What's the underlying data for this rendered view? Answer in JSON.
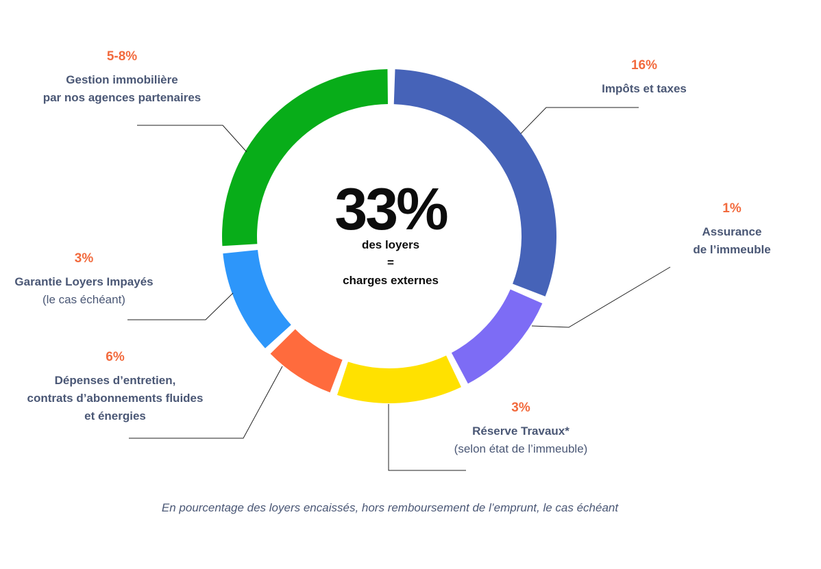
{
  "chart_data": {
    "type": "pie",
    "title": "33%",
    "center_lines": [
      "des loyers",
      "=",
      "charges externes"
    ],
    "slices": [
      {
        "key": "impots",
        "percent": "16%",
        "label": "Impôts et taxes",
        "sublabel": "",
        "color": "#4663b8",
        "weight": 16
      },
      {
        "key": "assurance",
        "percent": "1%",
        "label": "Assurance de l’immeuble",
        "sublabel": "",
        "color": "#7d6cf5",
        "weight": 5.6
      },
      {
        "key": "reserve",
        "percent": "3%",
        "label": "Réserve Travaux*",
        "sublabel": "(selon état de l’immeuble)",
        "color": "#ffe100",
        "weight": 6.4
      },
      {
        "key": "depenses",
        "percent": "6%",
        "label": "Dépenses d’entretien, contrats d’abonnements fluides et énergies",
        "sublabel": "",
        "color": "#ff6b3d",
        "weight": 3.6
      },
      {
        "key": "garantie",
        "percent": "3%",
        "label": "Garantie Loyers Impayés",
        "sublabel": "(le cas échéant)",
        "color": "#2d96fa",
        "weight": 5.3
      },
      {
        "key": "gestion",
        "percent": "5-8%",
        "label": "Gestion immobilière par nos agences partenaires",
        "sublabel": "",
        "color": "#08ad19",
        "weight": 13.6
      }
    ]
  },
  "labels": {
    "gestion": {
      "percent": "5-8%",
      "line1": "Gestion immobilière",
      "line2": "par nos agences partenaires"
    },
    "impots": {
      "percent": "16%",
      "line1": "Impôts et taxes"
    },
    "assurance": {
      "percent": "1%",
      "line1": "Assurance",
      "line2": "de l’immeuble"
    },
    "garantie": {
      "percent": "3%",
      "line1": "Garantie Loyers Impayés",
      "sub": "(le cas échéant)"
    },
    "depenses": {
      "percent": "6%",
      "line1": "Dépenses d’entretien,",
      "line2": "contrats d’abonnements fluides",
      "line3": "et énergies"
    },
    "reserve": {
      "percent": "3%",
      "line1": "Réserve Travaux*",
      "sub": "(selon état de l’immeuble)"
    }
  },
  "center": {
    "big": "33%",
    "line1": "des loyers",
    "line2": "=",
    "line3": "charges externes"
  },
  "footnote": "En pourcentage des loyers encaissés, hors remboursement de l’emprunt, le cas échéant"
}
